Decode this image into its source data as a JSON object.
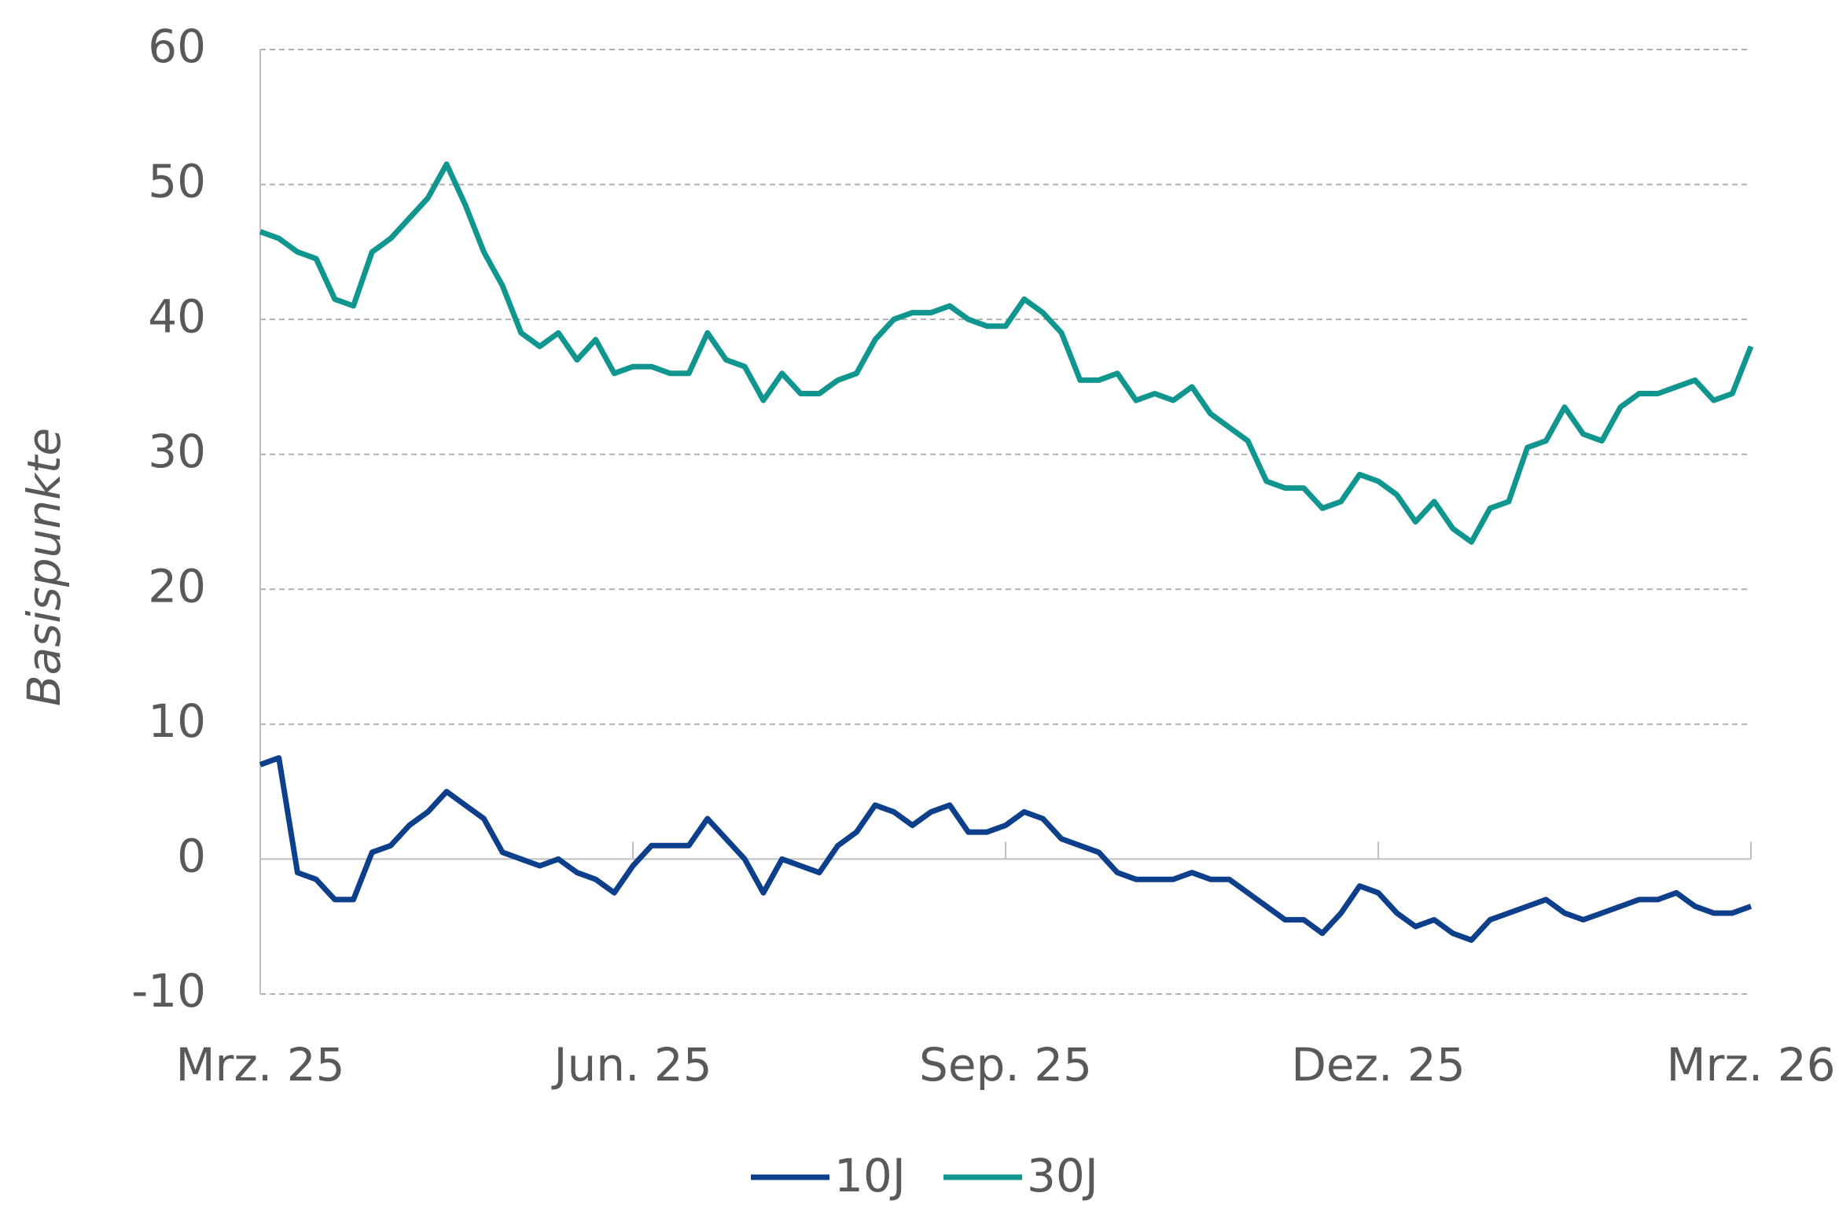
{
  "chart_data": {
    "type": "line",
    "y_label": "Basispunkte",
    "categories": [
      "Mrz. 25",
      null,
      null,
      null,
      null,
      null,
      null,
      null,
      null,
      null,
      null,
      null,
      null,
      null,
      null,
      null,
      null,
      null,
      null,
      null,
      "Jun. 25",
      null,
      null,
      null,
      null,
      null,
      null,
      null,
      null,
      null,
      null,
      null,
      null,
      null,
      null,
      null,
      null,
      null,
      null,
      null,
      "Sep. 25",
      null,
      null,
      null,
      null,
      null,
      null,
      null,
      null,
      null,
      null,
      null,
      null,
      null,
      null,
      null,
      null,
      null,
      null,
      null,
      "Dez. 25",
      null,
      null,
      null,
      null,
      null,
      null,
      null,
      null,
      null,
      null,
      null,
      null,
      null,
      null,
      null,
      null,
      null,
      null,
      null,
      "Mrz. 26"
    ],
    "series": [
      {
        "name": "10J",
        "color": "#0d3f8a",
        "values": [
          7,
          7.5,
          -1,
          -1.5,
          -3,
          -3,
          0.5,
          1,
          2.5,
          3.5,
          5,
          4,
          3,
          0.5,
          0,
          -0.5,
          0,
          -1,
          -1.5,
          -2.5,
          -0.5,
          1,
          1,
          1,
          3,
          1.5,
          0,
          -2.5,
          0,
          -0.5,
          -1,
          1,
          2,
          4,
          3.5,
          2.5,
          3.5,
          4,
          2,
          2,
          2.5,
          3.5,
          3,
          1.5,
          1,
          0.5,
          -1,
          -1.5,
          -1.5,
          -1.5,
          -1,
          -1.5,
          -1.5,
          -2.5,
          -3.5,
          -4.5,
          -4.5,
          -5.5,
          -4,
          -2,
          -2.5,
          -4,
          -5,
          -4.5,
          -5.5,
          -6,
          -4.5,
          -4,
          -3.5,
          -3,
          -4,
          -4.5,
          -4,
          -3.5,
          -3,
          -3,
          -2.5,
          -3.5,
          -4,
          -4,
          -3.5
        ]
      },
      {
        "name": "30J",
        "color": "#10968f",
        "values": [
          46.5,
          46,
          45,
          44.5,
          41.5,
          41,
          45,
          46,
          47.5,
          49,
          51.5,
          48.5,
          45,
          42.5,
          39,
          38,
          39,
          37,
          38.5,
          36,
          36.5,
          36.5,
          36,
          36,
          39,
          37,
          36.5,
          34,
          36,
          34.5,
          34.5,
          35.5,
          36,
          38.5,
          40,
          40.5,
          40.5,
          41,
          40,
          39.5,
          39.5,
          41.5,
          40.5,
          39,
          35.5,
          35.5,
          36,
          34,
          34.5,
          34,
          35,
          33,
          32,
          31,
          28,
          27.5,
          27.5,
          26,
          26.5,
          28.5,
          28,
          27,
          25,
          26.5,
          24.5,
          23.5,
          26,
          26.5,
          30.5,
          31,
          33.5,
          31.5,
          31,
          33.5,
          34.5,
          34.5,
          35,
          35.5,
          34,
          34.5,
          38
        ]
      }
    ],
    "ylim": [
      -10,
      60
    ],
    "yticks": [
      -10,
      0,
      10,
      20,
      30,
      40,
      50,
      60
    ],
    "grid": true
  }
}
